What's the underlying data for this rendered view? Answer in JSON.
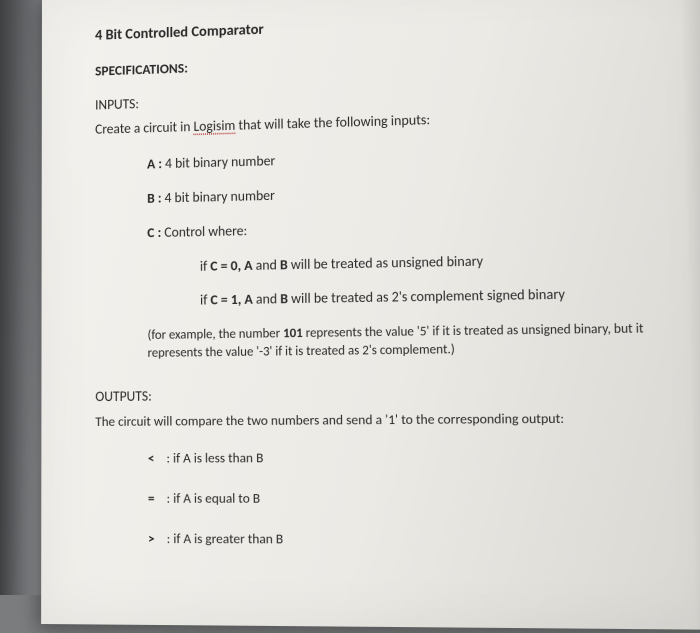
{
  "title": "4 Bit Controlled Comparator",
  "spec_heading": "SPECIFICATIONS:",
  "inputs_heading": "INPUTS:",
  "create_prefix": "Create a circuit in ",
  "logisim": "Logisim",
  "create_suffix": " that will take the following inputs:",
  "input_A": {
    "label": "A :",
    "text": "  4 bit binary number"
  },
  "input_B": {
    "label": "B :",
    "text": "  4 bit binary number"
  },
  "input_C": {
    "label": "C :",
    "text": "  Control where:"
  },
  "c0": {
    "prefix": "if ",
    "cond": "C = 0, A",
    "mid": " and ",
    "b": "B",
    "suffix": " will be treated as unsigned binary"
  },
  "c1": {
    "prefix": "if ",
    "cond": "C = 1, A",
    "mid": " and ",
    "b": "B",
    "suffix": " will be treated as 2's complement signed binary"
  },
  "note_a": "(for example, the number ",
  "note_101": "101",
  "note_b": " represents the value '5' if it is treated as unsigned binary, but it represents the value '-3' if it is treated as 2's complement.)",
  "outputs_heading": "OUTPUTS:",
  "outputs_desc": "The circuit will compare the two numbers and send a '1' to the corresponding output:",
  "out_lt": {
    "sym": "<",
    "sep": " :",
    "text": "  if A is less than B"
  },
  "out_eq": {
    "sym": "=",
    "sep": " :",
    "text": "  if A is equal to B"
  },
  "out_gt": {
    "sym": ">",
    "sep": " :",
    "text": "  if A is greater than B"
  }
}
